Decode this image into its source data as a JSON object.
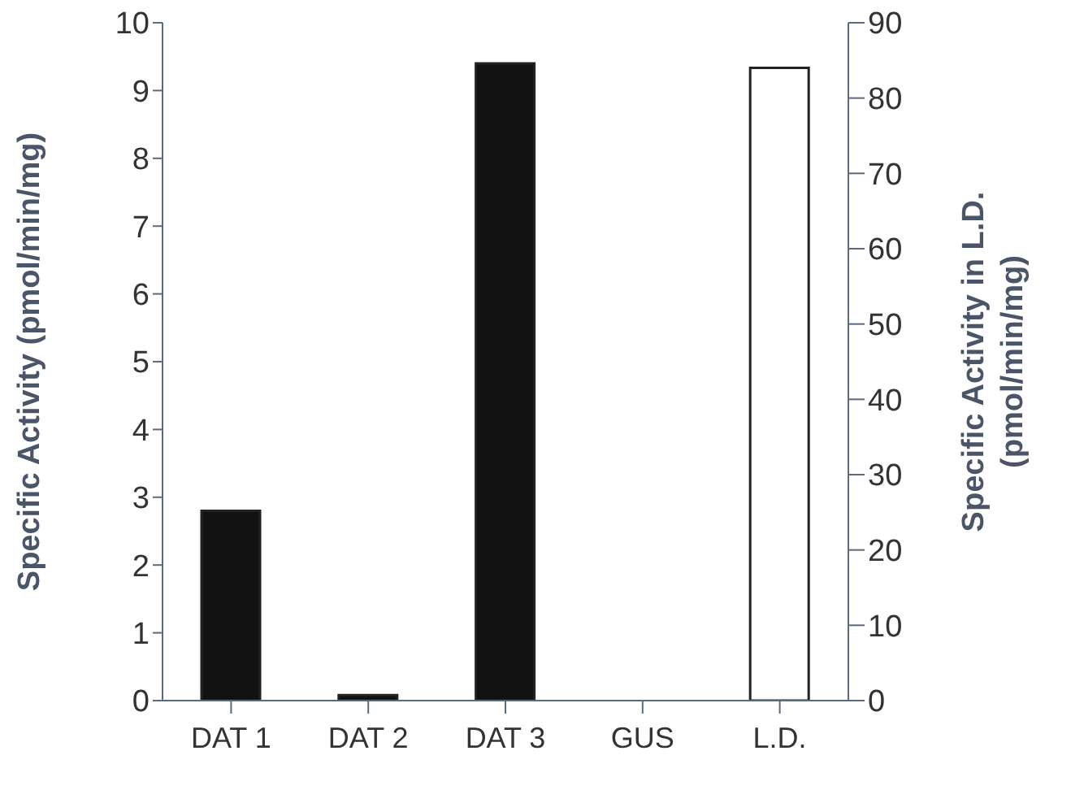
{
  "chart_data": {
    "type": "bar",
    "categories": [
      "DAT 1",
      "DAT 2",
      "DAT 3",
      "GUS",
      "L.D."
    ],
    "series": [
      {
        "color": "#111111",
        "values": [
          2.8,
          0.08,
          9.4,
          0,
          null
        ]
      },
      {
        "color": "#ffffff",
        "axis": "y2",
        "values": [
          null,
          null,
          null,
          null,
          84
        ]
      }
    ],
    "ylabel": "Specific Activity (pmol/min/mg)",
    "y2label": "Specific Activity in L.D.\n(pmol/min/mg)",
    "ylim": [
      0,
      10
    ],
    "yticks": [
      0,
      1,
      2,
      3,
      4,
      5,
      6,
      7,
      8,
      9,
      10
    ],
    "y2lim": [
      0,
      90
    ],
    "y2ticks": [
      0,
      10,
      20,
      30,
      40,
      50,
      60,
      70,
      80,
      90
    ],
    "grid": false,
    "legend": false
  }
}
